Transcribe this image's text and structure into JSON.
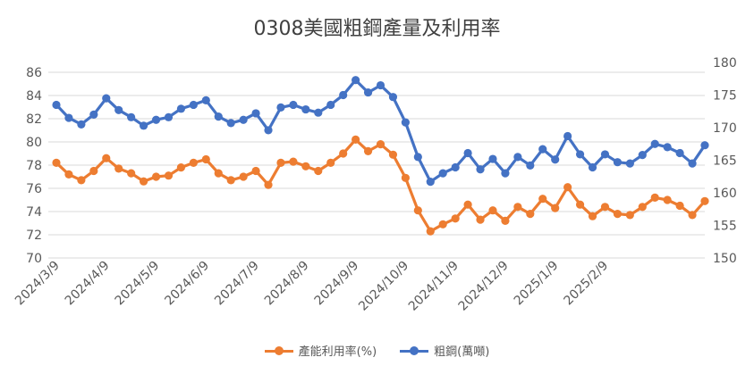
{
  "chart_data": {
    "type": "line",
    "title": "0308美國粗鋼產量及利用率",
    "x_tick_labels": [
      "2024/3/9",
      "2024/4/9",
      "2024/5/9",
      "2024/6/9",
      "2024/7/9",
      "2024/8/9",
      "2024/9/9",
      "2024/10/9",
      "2024/11/9",
      "2024/12/9",
      "2025/1/9",
      "2025/2/9"
    ],
    "y_left": {
      "min": 70,
      "max": 86,
      "step": 2,
      "ticks": [
        "70",
        "72",
        "74",
        "76",
        "78",
        "80",
        "82",
        "84",
        "86"
      ]
    },
    "y_right": {
      "min": 150,
      "max": 180,
      "step": 5,
      "ticks": [
        "150",
        "155",
        "160",
        "165",
        "170",
        "175",
        "180"
      ]
    },
    "series": [
      {
        "name": "產能利用率(%)",
        "axis": "left",
        "color": "#ED7D31",
        "values": [
          78.2,
          77.2,
          76.7,
          77.5,
          78.6,
          77.7,
          77.3,
          76.6,
          77.0,
          77.1,
          77.8,
          78.2,
          78.5,
          77.3,
          76.7,
          77.0,
          77.5,
          76.3,
          78.2,
          78.3,
          77.9,
          77.5,
          78.2,
          79.0,
          80.2,
          79.2,
          79.8,
          78.9,
          76.9,
          74.1,
          72.3,
          72.9,
          73.4,
          74.6,
          73.3,
          74.1,
          73.2,
          74.4,
          73.8,
          75.1,
          74.3,
          76.1,
          74.6,
          73.6,
          74.4,
          73.8,
          73.7,
          74.4,
          75.2,
          75.0,
          74.5,
          73.7,
          74.9
        ]
      },
      {
        "name": "粗鋼(萬噸)",
        "axis": "right",
        "color": "#4472C4",
        "values": [
          173.5,
          171.5,
          170.5,
          172.0,
          174.5,
          172.7,
          171.6,
          170.3,
          171.2,
          171.6,
          172.9,
          173.5,
          174.2,
          171.7,
          170.7,
          171.2,
          172.2,
          169.6,
          173.1,
          173.5,
          172.8,
          172.3,
          173.5,
          175.0,
          177.3,
          175.4,
          176.5,
          174.7,
          170.8,
          165.5,
          161.7,
          163.0,
          163.9,
          166.1,
          163.6,
          165.2,
          163.0,
          165.5,
          164.2,
          166.7,
          165.1,
          168.7,
          165.9,
          163.9,
          165.9,
          164.7,
          164.5,
          165.8,
          167.5,
          167.0,
          166.1,
          164.5,
          167.3
        ]
      }
    ],
    "legend": [
      "產能利用率(%)",
      "粗鋼(萬噸)"
    ],
    "legend_position": "bottom",
    "grid": true
  }
}
